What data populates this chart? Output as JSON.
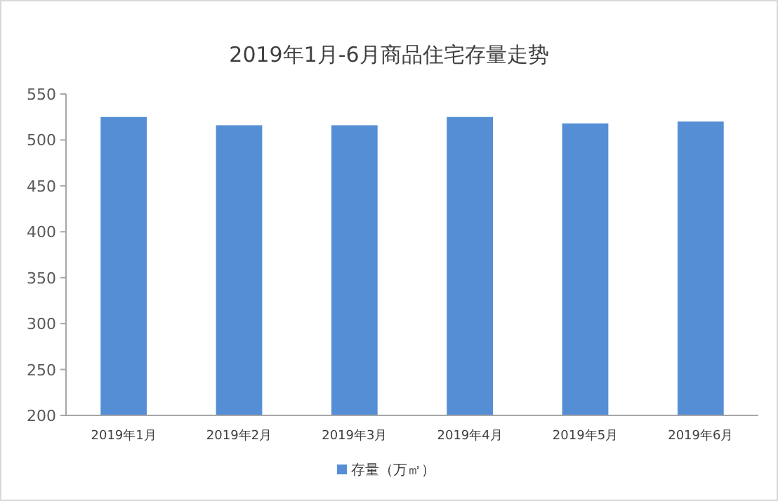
{
  "chart_data": {
    "type": "bar",
    "title": "2019年1月-6月商品住宅存量走势",
    "categories": [
      "2019年1月",
      "2019年2月",
      "2019年3月",
      "2019年4月",
      "2019年5月",
      "2019年6月"
    ],
    "series": [
      {
        "name": "存量（万㎡）",
        "color": "#558ed5",
        "values": [
          525,
          516,
          516,
          525,
          518,
          520
        ]
      }
    ],
    "ylim": [
      200,
      550
    ],
    "yticks": [
      200,
      250,
      300,
      350,
      400,
      450,
      500,
      550
    ],
    "grid": false,
    "legend": "bottom"
  }
}
